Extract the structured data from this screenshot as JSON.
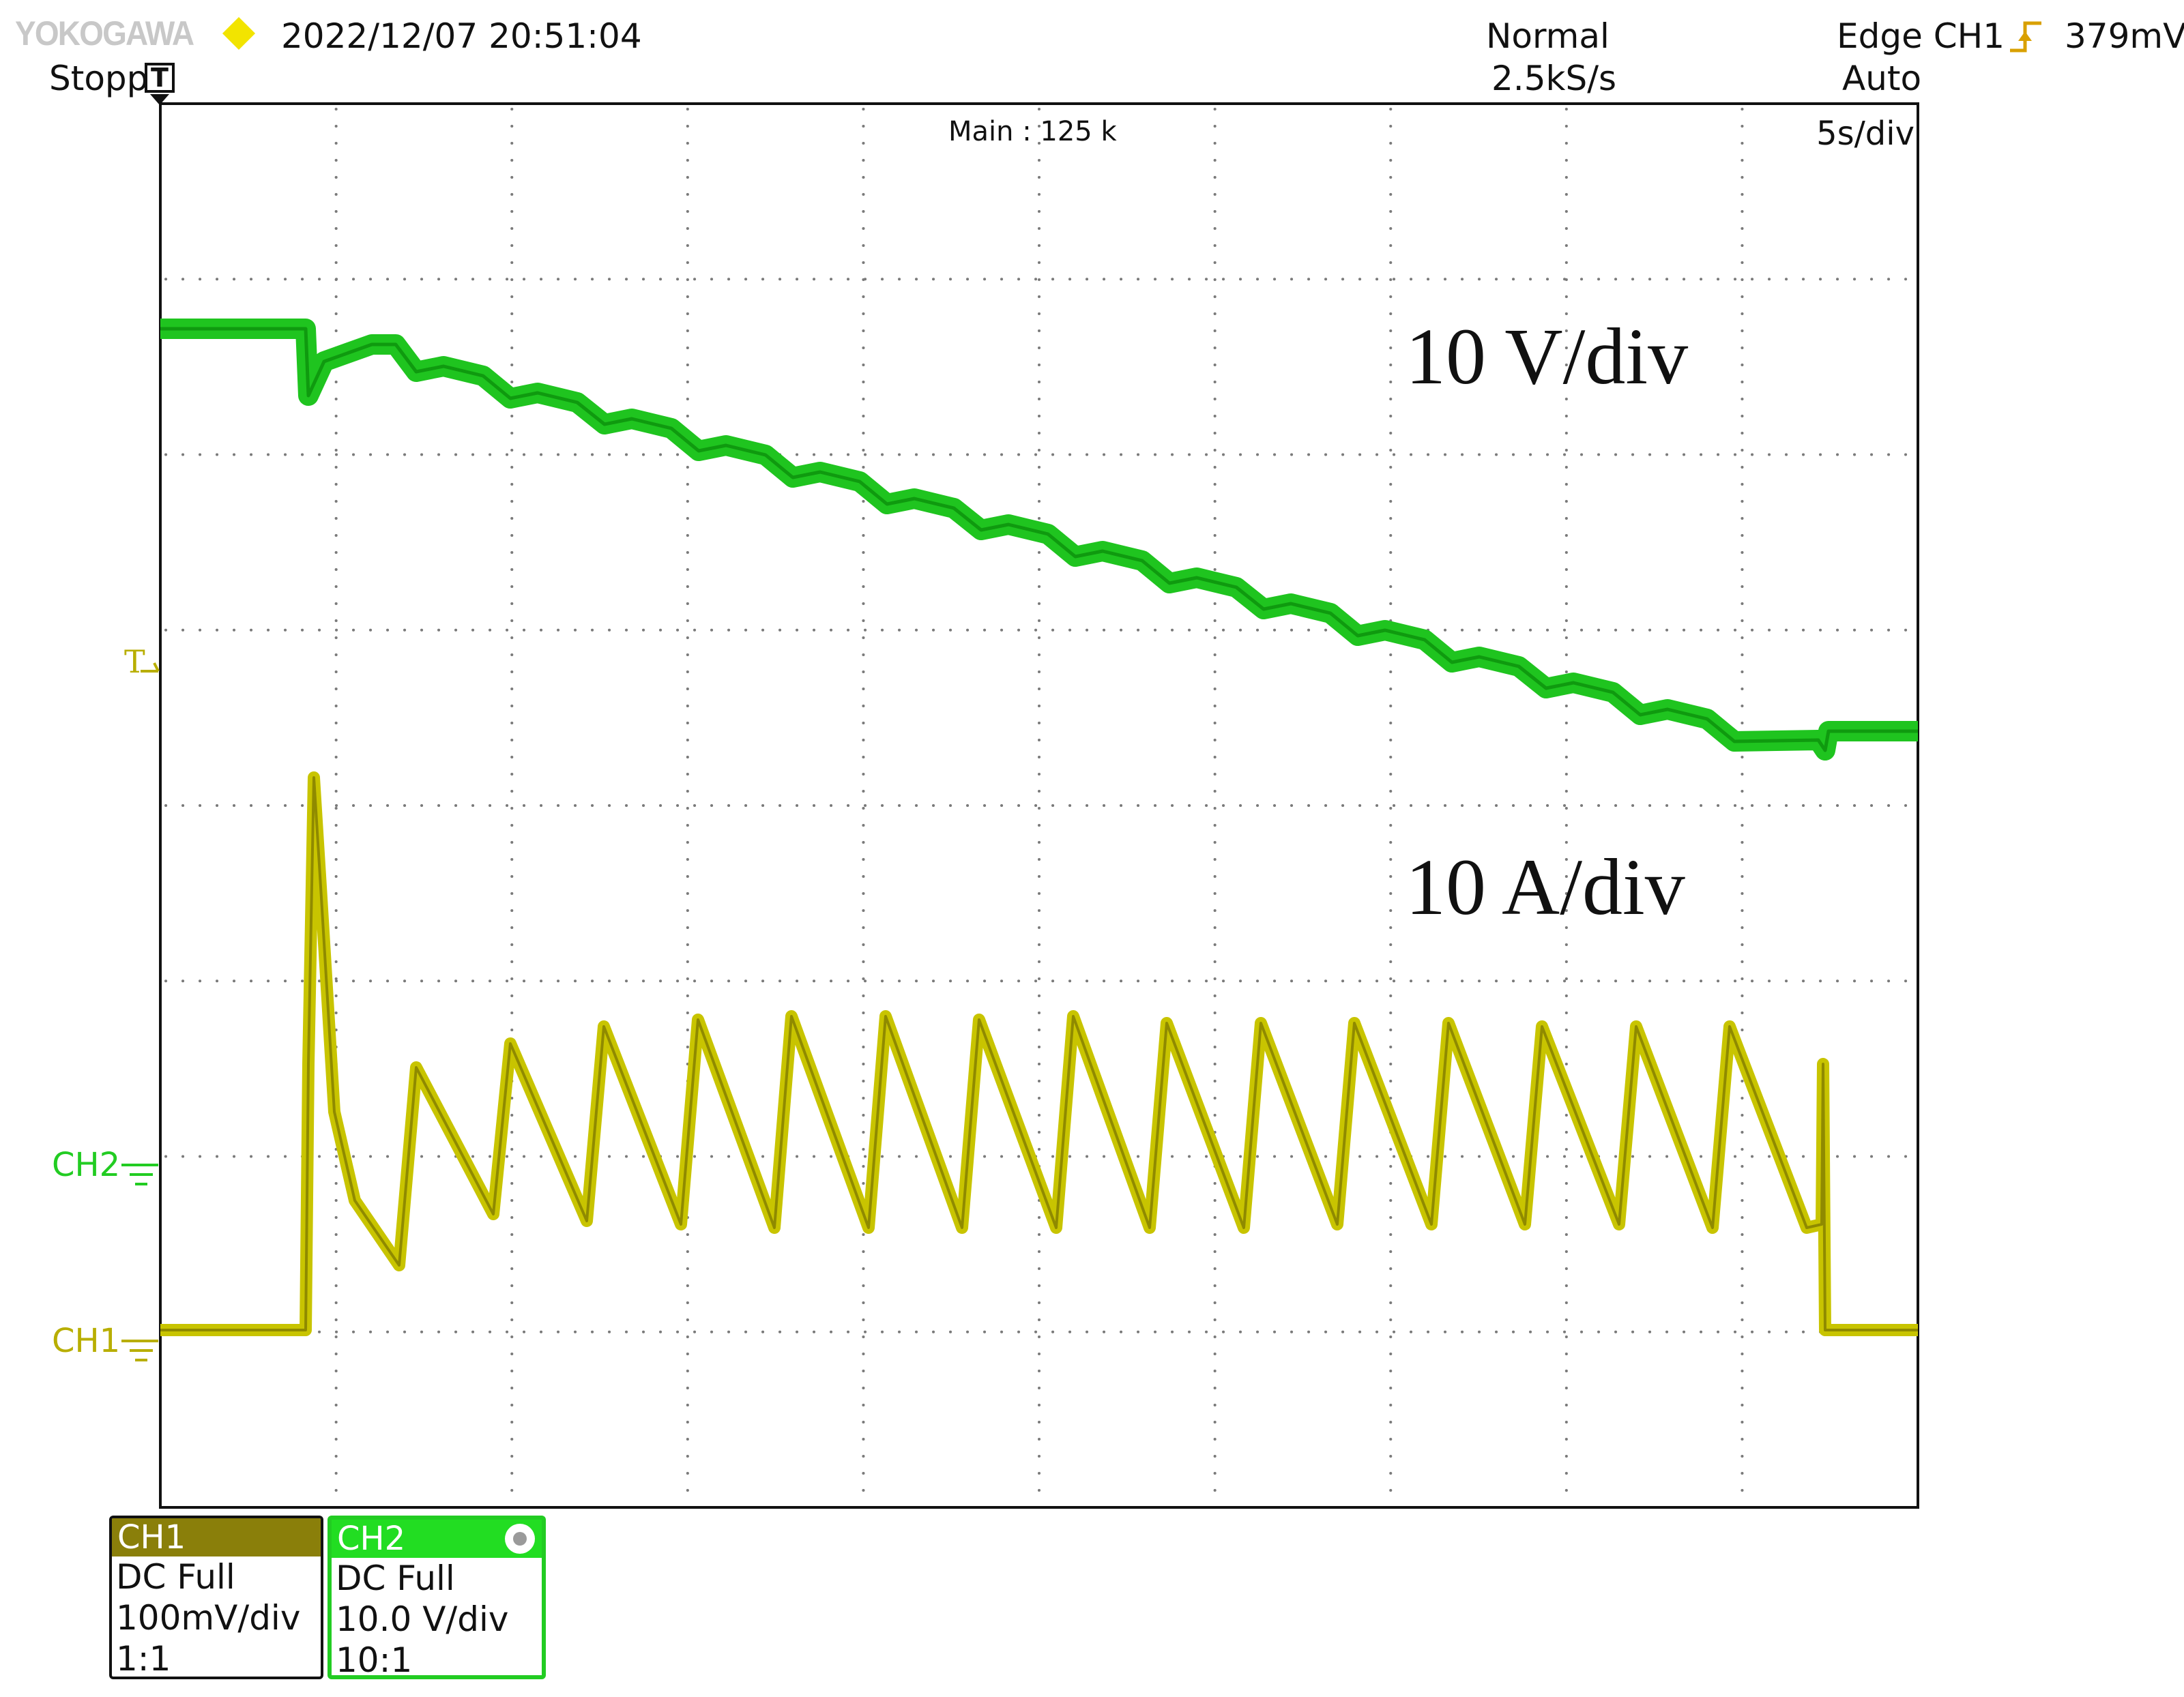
{
  "header": {
    "brand": "YOKOGAWA",
    "datetime": "2022/12/07 20:51:04",
    "status": "Stopp",
    "trigger_position_icon": "T",
    "acquisition_mode": "Normal",
    "sample_rate": "2.5kS/s",
    "trigger_type": "Edge CH1",
    "trigger_mode": "Auto",
    "trigger_level": "379mV"
  },
  "screen": {
    "record_length": "Main : 125 k",
    "timebase": "5s/div",
    "annotation_voltage": "10 V/div",
    "annotation_current": "10 A/div"
  },
  "markers": {
    "trigger_level_mark": "T",
    "ch2_label": "CH2",
    "ch1_label": "CH1"
  },
  "channels": [
    {
      "name": "CH1",
      "coupling": "DC Full",
      "scale": "100mV/div",
      "probe": "1:1",
      "color": "#c8c400"
    },
    {
      "name": "CH2",
      "coupling": "DC Full",
      "scale": "10.0 V/div",
      "probe": "10:1",
      "color": "#22cc22"
    }
  ],
  "colors": {
    "ch1_trace": "#c8c400",
    "ch2_trace": "#1fc41f",
    "grid_dots": "#7a7a7a",
    "brand_diamond": "#f2e400",
    "edge_icon": "#d9a000"
  },
  "icons": {
    "brand": "yokogawa-logo",
    "indicator": "yellow-diamond-icon",
    "trigger_position": "trigger-t-icon",
    "edge_rising": "rising-edge-icon",
    "ground": "ground-icon",
    "channel_knob": "knob-icon"
  }
}
